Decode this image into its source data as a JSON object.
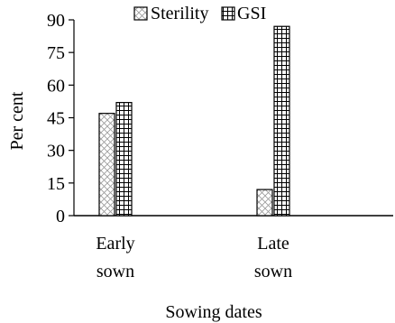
{
  "chart_data": {
    "type": "bar",
    "title": "",
    "xlabel": "Sowing dates",
    "ylabel": "Per cent",
    "categories": [
      [
        "Early",
        "sown"
      ],
      [
        "Late",
        "sown"
      ]
    ],
    "series": [
      {
        "name": "Sterility",
        "values": [
          47,
          12
        ],
        "pattern": "crosshatch"
      },
      {
        "name": "GSI",
        "values": [
          52,
          87
        ],
        "pattern": "grid"
      }
    ],
    "ylim": [
      0,
      90
    ],
    "yticks": [
      0,
      15,
      30,
      45,
      60,
      75,
      90
    ],
    "legend": "top",
    "grid": false
  }
}
